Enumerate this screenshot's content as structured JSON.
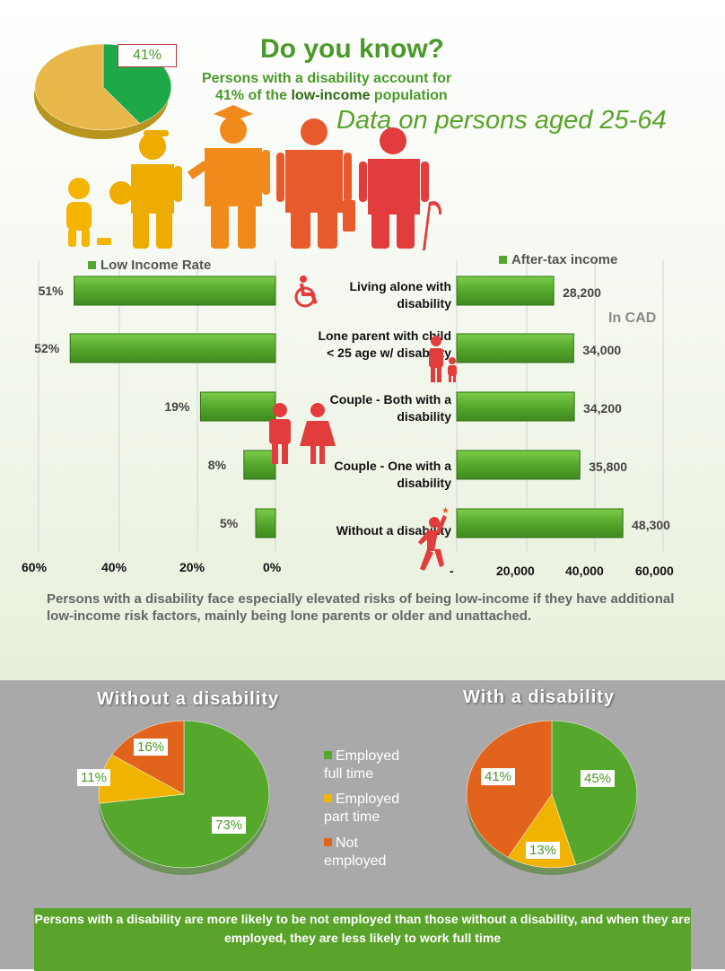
{
  "header": {
    "badge_pct": "41%",
    "title": "Do you know?",
    "subtitle_line1": "Persons with a disability account for",
    "subtitle_line2_pre": "41% of the ",
    "subtitle_line2_bold": "low-income",
    "subtitle_line2_post": " population",
    "italic_note": "Data on persons aged 25-64"
  },
  "colors": {
    "green": "#55a82c",
    "dark_green": "#3f8a1f",
    "red": "#e23c3c",
    "orange": "#e2641c",
    "yellow": "#f0b400",
    "grey": "#a9a9a9"
  },
  "legend_left": "Low Income Rate",
  "legend_right": "After-tax income",
  "units_note": "In CAD",
  "categories": [
    "Living alone with disability",
    "Lone parent with child < 25 age w/ disability",
    "Couple - Both with a disability",
    "Couple - One with a disability",
    "Without a disability"
  ],
  "category_lines": [
    [
      "Living alone with",
      "disability"
    ],
    [
      "Lone parent with child",
      "< 25 age w/ disability"
    ],
    [
      "Couple - Both with a",
      "disability"
    ],
    [
      "Couple - One with a",
      "disability"
    ],
    [
      "Without a disability"
    ]
  ],
  "left_labels": [
    "51%",
    "52%",
    "19%",
    "8%",
    "5%"
  ],
  "right_labels": [
    "28,200",
    "34,000",
    "34,200",
    "35,800",
    "48,300"
  ],
  "left_ticks": [
    "60%",
    "40%",
    "20%",
    "0%"
  ],
  "right_ticks": [
    "-",
    "20,000",
    "40,000",
    "60,000"
  ],
  "note": "Persons with a disability face especially elevated risks of being low-income if they have additional low-income risk factors, mainly being lone parents or older and unattached.",
  "pie_without": {
    "title": "Without a disability",
    "labels": [
      "73%",
      "11%",
      "16%"
    ]
  },
  "pie_with": {
    "title": "With a disability",
    "labels": [
      "45%",
      "13%",
      "41%"
    ]
  },
  "pie_legend": [
    {
      "line1": "Employed",
      "line2": "full time",
      "color": "#55a82c"
    },
    {
      "line1": "Employed",
      "line2": "part time",
      "color": "#f0b400"
    },
    {
      "line1": "Not",
      "line2": "employed",
      "color": "#e2641c"
    }
  ],
  "footer": "Persons with a disability are more likely to be not employed than those without a disability, and when they are employed, they are less likely to work full time",
  "chart_data": [
    {
      "type": "bar",
      "title": "Low Income Rate",
      "categories": [
        "Living alone with disability",
        "Lone parent with child < 25 age w/ disability",
        "Couple - Both with a disability",
        "Couple - One with a disability",
        "Without a disability"
      ],
      "values": [
        51,
        52,
        19,
        8,
        5
      ],
      "unit": "%",
      "xlim": [
        0,
        60
      ],
      "orientation": "horizontal-reversed"
    },
    {
      "type": "bar",
      "title": "After-tax income",
      "categories": [
        "Living alone with disability",
        "Lone parent with child < 25 age w/ disability",
        "Couple - Both with a disability",
        "Couple - One with a disability",
        "Without a disability"
      ],
      "values": [
        28200,
        34000,
        34200,
        35800,
        48300
      ],
      "unit": "In CAD",
      "xlim": [
        0,
        60000
      ],
      "orientation": "horizontal"
    },
    {
      "type": "pie",
      "title": "Without a disability",
      "labels": [
        "Employed full time",
        "Employed part time",
        "Not employed"
      ],
      "values": [
        73,
        11,
        16
      ]
    },
    {
      "type": "pie",
      "title": "With a disability",
      "labels": [
        "Employed full time",
        "Employed part time",
        "Not employed"
      ],
      "values": [
        45,
        13,
        41
      ]
    }
  ],
  "top_pie": {
    "values": [
      41,
      59
    ]
  }
}
